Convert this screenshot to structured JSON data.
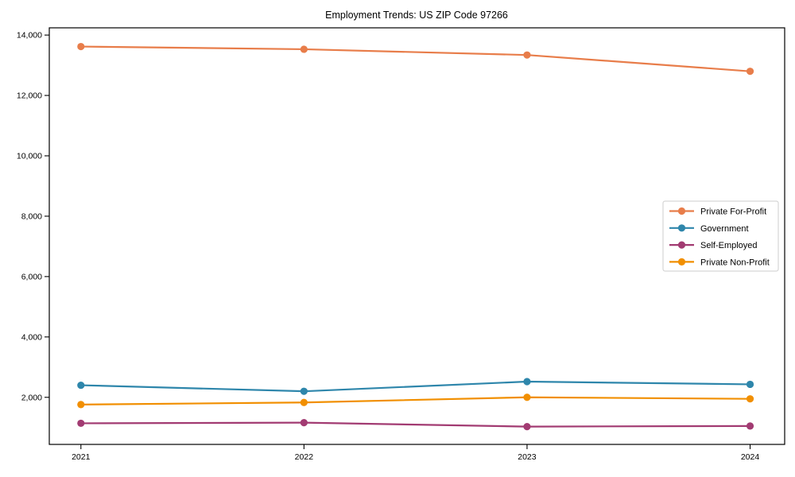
{
  "title": "Employment Trends: US ZIP Code 97266",
  "chart_data": {
    "type": "line",
    "title": "Employment Trends: US ZIP Code 97266",
    "xlabel": "",
    "ylabel": "",
    "categories": [
      "2021",
      "2022",
      "2023",
      "2024"
    ],
    "series": [
      {
        "name": "Private For-Profit",
        "color": "#E87D4A",
        "values": [
          13620,
          13530,
          13340,
          12800
        ]
      },
      {
        "name": "Government",
        "color": "#2E86AB",
        "values": [
          2400,
          2200,
          2520,
          2430
        ]
      },
      {
        "name": "Self-Employed",
        "color": "#A23B72",
        "values": [
          1140,
          1160,
          1030,
          1050
        ]
      },
      {
        "name": "Private Non-Profit",
        "color": "#F18F01",
        "values": [
          1760,
          1830,
          2000,
          1950
        ]
      }
    ],
    "ylim": [
      440,
      14240
    ],
    "yticks": [
      2000,
      4000,
      6000,
      8000,
      10000,
      12000,
      14000
    ],
    "ytick_labels": [
      "2,000",
      "4,000",
      "6,000",
      "8,000",
      "10,000",
      "12,000",
      "14,000"
    ],
    "xtick_labels": [
      "2021",
      "2022",
      "2023",
      "2024"
    ],
    "grid": false,
    "marker": "circle",
    "legend": {
      "location": "center-right",
      "entries": [
        "Private For-Profit",
        "Government",
        "Self-Employed",
        "Private Non-Profit"
      ],
      "border_color": "#cccccc",
      "background": "#ffffff"
    },
    "spine_color": "#000000",
    "background": "#ffffff"
  }
}
